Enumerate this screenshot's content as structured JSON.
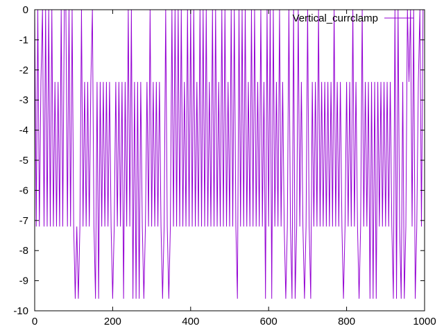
{
  "chart_data": {
    "type": "line",
    "title": "",
    "xlabel": "",
    "ylabel": "",
    "xlim": [
      0,
      1000
    ],
    "ylim": [
      -10,
      0
    ],
    "xticks": [
      "0",
      "200",
      "400",
      "600",
      "800",
      "1000"
    ],
    "yticks": [
      "0",
      "-1",
      "-2",
      "-3",
      "-4",
      "-5",
      "-6",
      "-7",
      "-8",
      "-9",
      "-10"
    ],
    "grid": false,
    "legend_position": "top-right",
    "series": [
      {
        "name": "Vertical_currclamp",
        "color": "#9400d3",
        "x_start": 0,
        "x_step": 4,
        "values": [
          0,
          -7.2,
          0,
          -7.2,
          -2.4,
          0,
          -7.2,
          0,
          -7.2,
          0,
          -7.2,
          0,
          -7.2,
          -2.4,
          -7.2,
          -2.4,
          -7.2,
          0,
          -7.2,
          0,
          0,
          -7.2,
          0,
          -7.2,
          0,
          -7.2,
          -9.6,
          -7.2,
          -9.6,
          -7.2,
          0,
          -7.2,
          -2.4,
          -7.2,
          -2.4,
          -7.2,
          -2.4,
          0,
          -7.2,
          -9.6,
          -2.4,
          -9.6,
          -2.4,
          -7.2,
          -2.4,
          -7.2,
          -2.4,
          -7.2,
          -2.4,
          -7.2,
          -9.6,
          -7.2,
          -2.4,
          -7.2,
          -2.4,
          -7.2,
          -2.4,
          -9.6,
          -2.4,
          -7.2,
          0,
          -7.2,
          0,
          -9.6,
          -2.4,
          -9.6,
          -2.4,
          -9.6,
          -2.4,
          -7.2,
          -9.6,
          -7.2,
          -2.4,
          -7.2,
          0,
          -7.2,
          -2.4,
          -7.2,
          -2.4,
          -7.2,
          -2.4,
          -7.2,
          -9.6,
          -7.2,
          0,
          -7.2,
          -9.6,
          -7.2,
          0,
          -7.2,
          0,
          -7.2,
          0,
          -7.2,
          0,
          -7.2,
          -2.4,
          -7.2,
          0,
          -7.2,
          0,
          -7.2,
          0,
          -7.2,
          -2.4,
          -7.2,
          0,
          -7.2,
          0,
          -7.2,
          0,
          -7.2,
          -2.4,
          -7.2,
          0,
          -7.2,
          0,
          -7.2,
          -2.4,
          -7.2,
          0,
          -7.2,
          0,
          -7.2,
          -2.4,
          -7.2,
          0,
          -7.2,
          0,
          -7.2,
          -9.6,
          0,
          -7.2,
          0,
          -7.2,
          0,
          -7.2,
          -2.4,
          -7.2,
          0,
          -7.2,
          0,
          -7.2,
          -2.4,
          -7.2,
          0,
          -7.2,
          -2.4,
          -9.6,
          0,
          -7.2,
          0,
          -9.6,
          0,
          -7.2,
          -2.4,
          -7.2,
          0,
          -7.2,
          -2.4,
          -7.2,
          -9.6,
          -7.2,
          0,
          -7.2,
          -9.6,
          0,
          -9.6,
          -7.2,
          0,
          -7.2,
          -2.4,
          -7.2,
          -9.6,
          -7.2,
          0,
          -7.2,
          -9.6,
          -2.4,
          -7.2,
          -2.4,
          -7.2,
          0,
          -7.2,
          -2.4,
          -7.2,
          -2.4,
          -7.2,
          -2.4,
          -7.2,
          -2.4,
          -7.2,
          0,
          -7.2,
          -2.4,
          -7.2,
          -2.4,
          -7.2,
          -9.6,
          -7.2,
          -2.4,
          -7.2,
          -2.4,
          -7.2,
          0,
          -7.2,
          -2.4,
          -7.2,
          -9.6,
          -7.2,
          0,
          -7.2,
          -2.4,
          -7.2,
          -2.4,
          -9.6,
          -2.4,
          -9.6,
          -2.4,
          -9.6,
          -2.4,
          -7.2,
          -2.4,
          -7.2,
          -2.4,
          -7.2,
          -2.4,
          -7.2,
          -2.4,
          -7.2,
          -9.6,
          0,
          -9.6,
          0,
          -7.2,
          -9.6,
          -2.4,
          -9.6,
          -7.2,
          0,
          -2.4,
          0,
          -7.2,
          0,
          -9.6,
          -7.2,
          -2.4,
          0,
          -7.2,
          0
        ]
      }
    ]
  }
}
